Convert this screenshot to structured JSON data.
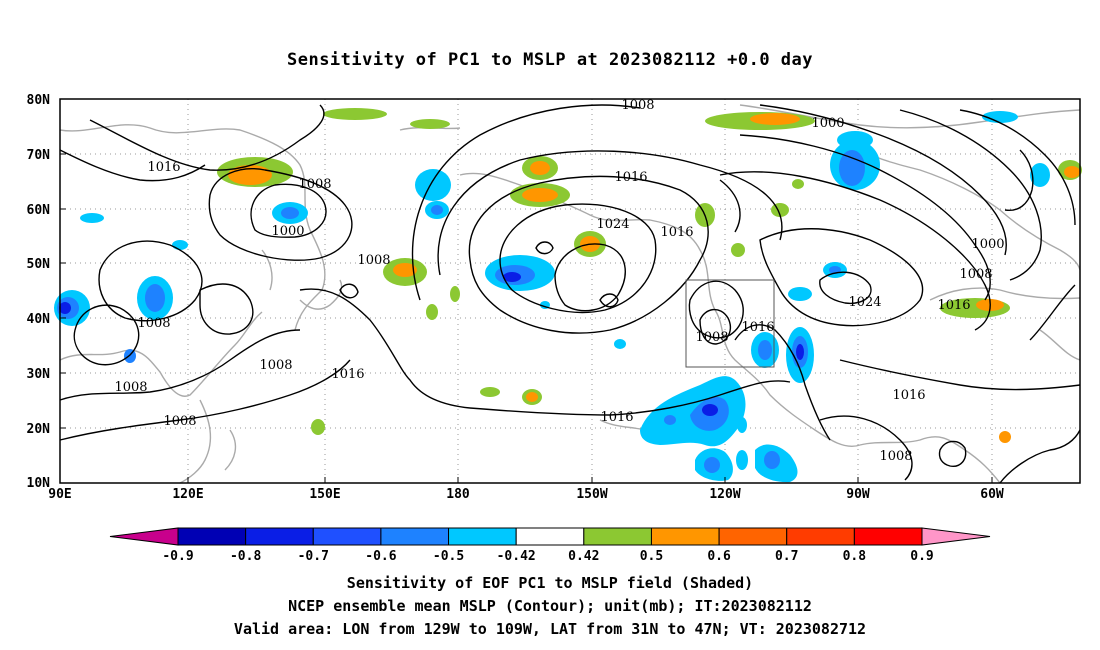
{
  "title": "Sensitivity of PC1 to MSLP at 2023082112 +0.0 day",
  "lat_labels": [
    "80N",
    "70N",
    "60N",
    "50N",
    "40N",
    "30N",
    "20N",
    "10N"
  ],
  "lon_labels": [
    "90E",
    "120E",
    "150E",
    "180",
    "150W",
    "120W",
    "90W",
    "60W"
  ],
  "contour_labels": [
    "1016",
    "1008",
    "1000",
    "1008",
    "1008",
    "1008",
    "1008",
    "1008",
    "1016",
    "1008",
    "1016",
    "1024",
    "1016",
    "1008",
    "1016",
    "1000",
    "1000",
    "1008",
    "1016",
    "1024",
    "1016",
    "1016",
    "1008"
  ],
  "colorbar": {
    "labels": [
      "-0.9",
      "-0.8",
      "-0.7",
      "-0.6",
      "-0.5",
      "-0.42",
      "0.42",
      "0.5",
      "0.6",
      "0.7",
      "0.8",
      "0.9"
    ],
    "colors": [
      "#c8008c",
      "#0000b4",
      "#0a1ee6",
      "#1f50ff",
      "#1e82ff",
      "#00c8ff",
      "#ffffff",
      "#8cc832",
      "#ff9600",
      "#ff6400",
      "#ff3c00",
      "#ff0000",
      "#ff96c8"
    ]
  },
  "caption": {
    "line1": "Sensitivity of EOF PC1 to MSLP field (Shaded)",
    "line2": "NCEP ensemble mean MSLP (Contour); unit(mb); IT:2023082112",
    "line3": "Valid area: LON from 129W to 109W, LAT from 31N to 47N; VT: 2023082712"
  },
  "valid_area": {
    "lon": [
      "129W",
      "109W"
    ],
    "lat": [
      "31N",
      "47N"
    ]
  }
}
